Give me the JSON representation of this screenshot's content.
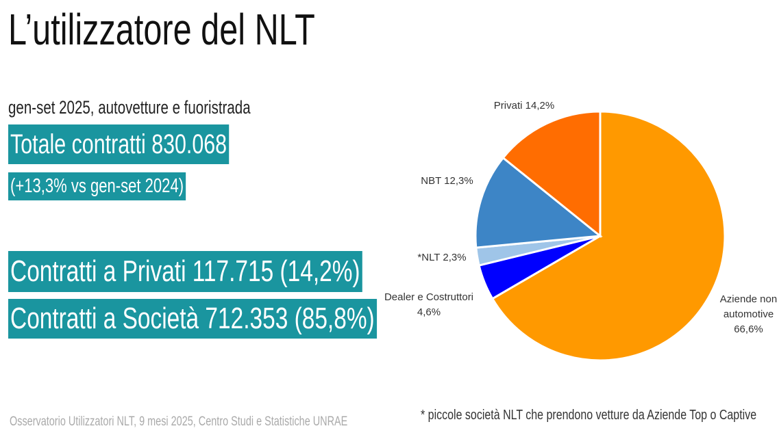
{
  "header": {
    "title": "L’utilizzatore del NLT",
    "subtitle": "gen-set 2025, autovetture e fuoristrada",
    "total": "Totale contratti 830.068",
    "change": "(+13,3% vs  gen-set 2024)",
    "privati": "Contratti a Privati  117.715 (14,2%)",
    "societa": "Contratti a Società 712.353 (85,8%)",
    "source": "Osservatorio Utilizzatori NLT, 9 mesi 2025, Centro Studi e Statistiche UNRAE",
    "footnote": "* piccole società NLT che prendono vetture da Aziende Top o Captive"
  },
  "chart_data": {
    "type": "pie",
    "categories": [
      "Aziende non automotive",
      "Dealer e Costruttori",
      "*NLT",
      "NBT",
      "Privati"
    ],
    "values": [
      66.6,
      4.6,
      2.3,
      12.3,
      14.2
    ],
    "value_labels": [
      "66,6%",
      "4,6%",
      "2,3%",
      "12,3%",
      "14,2%"
    ],
    "colors": [
      "#ff9900",
      "#0000ff",
      "#9fc5e8",
      "#3d85c6",
      "#ff6d01"
    ]
  }
}
